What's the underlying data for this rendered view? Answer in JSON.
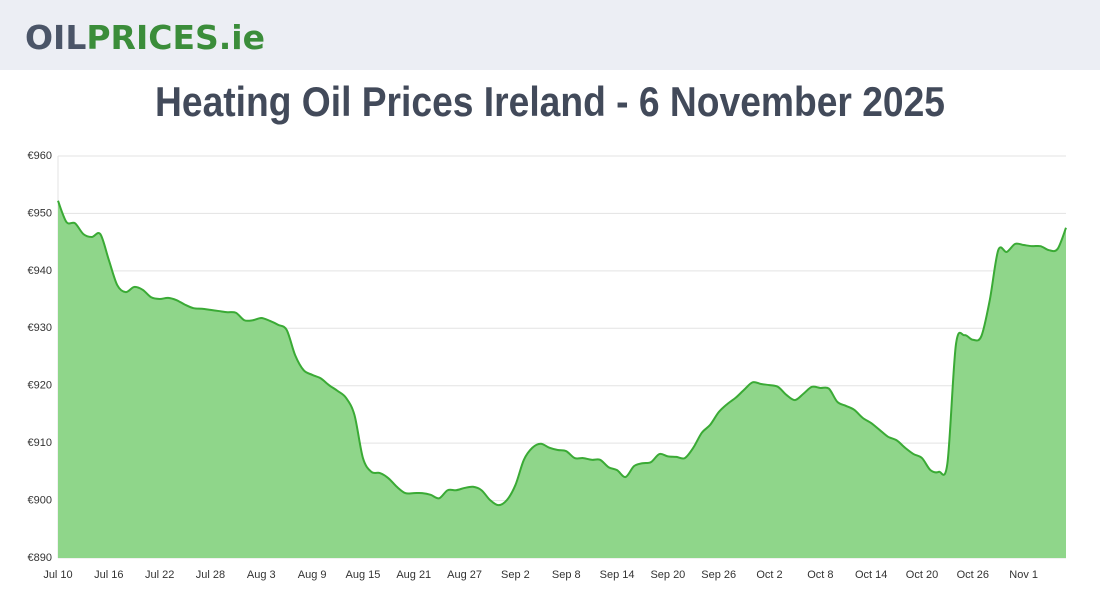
{
  "header": {
    "logo": [
      "OIL",
      "PRICES",
      ".ie"
    ]
  },
  "chart_data": {
    "type": "area",
    "title": "Heating Oil Prices Ireland - 6 November 2025",
    "categories": [
      "Jul 10",
      null,
      null,
      null,
      null,
      null,
      "Jul 16",
      null,
      null,
      null,
      null,
      null,
      "Jul 22",
      null,
      null,
      null,
      null,
      null,
      "Jul 28",
      null,
      null,
      null,
      null,
      null,
      "Aug 3",
      null,
      null,
      null,
      null,
      null,
      "Aug 9",
      null,
      null,
      null,
      null,
      null,
      "Aug 15",
      null,
      null,
      null,
      null,
      null,
      "Aug 21",
      null,
      null,
      null,
      null,
      null,
      "Aug 27",
      null,
      null,
      null,
      null,
      null,
      "Sep 2",
      null,
      null,
      null,
      null,
      null,
      "Sep 8",
      null,
      null,
      null,
      null,
      null,
      "Sep 14",
      null,
      null,
      null,
      null,
      null,
      "Sep 20",
      null,
      null,
      null,
      null,
      null,
      "Sep 26",
      null,
      null,
      null,
      null,
      null,
      "Oct 2",
      null,
      null,
      null,
      null,
      null,
      "Oct 8",
      null,
      null,
      null,
      null,
      null,
      "Oct 14",
      null,
      null,
      null,
      null,
      null,
      "Oct 20",
      null,
      null,
      null,
      null,
      null,
      "Oct 26",
      null,
      null,
      null,
      null,
      null,
      "Nov 1",
      null,
      null,
      null,
      null,
      null
    ],
    "series": [
      {
        "name": "Heating oil price",
        "color": "#3aaa35",
        "fill": "#8fd68a",
        "values": [
          952.2,
          948.5,
          948.3,
          946.4,
          945.9,
          946.4,
          941.9,
          937.5,
          936.3,
          937.2,
          936.7,
          935.4,
          935.1,
          935.3,
          934.9,
          934.1,
          933.5,
          933.4,
          933.2,
          933.0,
          932.8,
          932.7,
          931.4,
          931.4,
          931.8,
          931.3,
          930.6,
          929.7,
          925.3,
          922.7,
          921.9,
          921.3,
          920.1,
          919.1,
          917.9,
          914.9,
          907.4,
          905.0,
          904.8,
          903.9,
          902.4,
          901.3,
          901.3,
          901.3,
          901.0,
          900.4,
          901.8,
          901.8,
          902.2,
          902.4,
          901.8,
          900.1,
          899.2,
          900.1,
          902.7,
          907.1,
          909.2,
          909.9,
          909.2,
          908.8,
          908.6,
          907.4,
          907.4,
          907.1,
          907.1,
          905.8,
          905.3,
          904.1,
          906.0,
          906.5,
          906.7,
          908.1,
          907.7,
          907.6,
          907.4,
          909.2,
          911.8,
          913.2,
          915.4,
          916.8,
          917.9,
          919.3,
          920.6,
          920.3,
          920.1,
          919.8,
          918.4,
          917.5,
          918.6,
          919.8,
          919.6,
          919.5,
          917.2,
          916.5,
          915.8,
          914.4,
          913.5,
          912.3,
          911.1,
          910.5,
          909.2,
          908.1,
          907.4,
          905.3,
          905.0,
          906.5,
          927.1,
          928.8,
          928.0,
          928.6,
          934.9,
          943.6,
          943.3,
          944.7,
          944.5,
          944.3,
          944.3,
          943.6,
          943.8,
          947.5
        ]
      }
    ],
    "ylim": [
      890,
      960
    ],
    "yticks": [
      {
        "value": 890,
        "label": "€890"
      },
      {
        "value": 900,
        "label": "€900"
      },
      {
        "value": 910,
        "label": "€910"
      },
      {
        "value": 920,
        "label": "€920"
      },
      {
        "value": 930,
        "label": "€930"
      },
      {
        "value": 940,
        "label": "€940"
      },
      {
        "value": 950,
        "label": "€950"
      },
      {
        "value": 960,
        "label": "€960"
      }
    ],
    "grid": true
  }
}
